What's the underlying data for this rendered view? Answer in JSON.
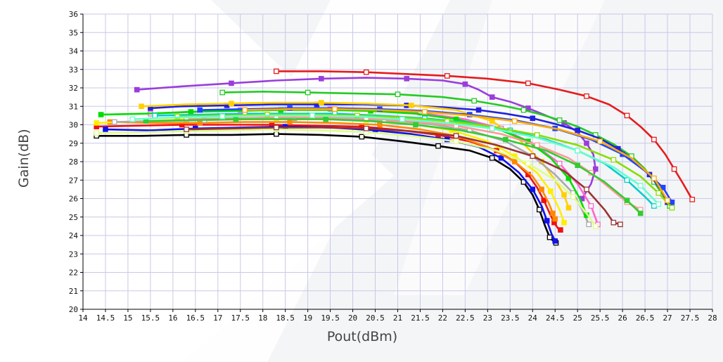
{
  "chart_data": {
    "type": "line",
    "title": "",
    "xlabel": "Pout(dBm)",
    "ylabel": "Gain(dB)",
    "xlim": [
      14,
      28
    ],
    "ylim": [
      20,
      36
    ],
    "xticks": [
      "14",
      "14.5",
      "15",
      "15.5",
      "16",
      "16.5",
      "17",
      "17.5",
      "18",
      "18.5",
      "19",
      "19.5",
      "20",
      "20.5",
      "21",
      "21.5",
      "22",
      "22.5",
      "23",
      "23.5",
      "24",
      "24.5",
      "25",
      "25.5",
      "26",
      "26.5",
      "27",
      "27.5",
      "28"
    ],
    "yticks": [
      "20",
      "21",
      "22",
      "23",
      "24",
      "25",
      "26",
      "27",
      "28",
      "29",
      "30",
      "31",
      "32",
      "33",
      "34",
      "35",
      "36"
    ],
    "grid": true,
    "legend": "none",
    "series": [
      {
        "color": "#e51c1c",
        "marker": "open",
        "x": [
          18.3,
          19.3,
          20.3,
          21.2,
          22.1,
          23,
          23.9,
          24.6,
          25.2,
          25.7,
          26.1,
          26.4,
          26.7,
          26.95,
          27.15,
          27.35,
          27.55
        ],
        "y": [
          32.9,
          32.9,
          32.85,
          32.75,
          32.65,
          32.5,
          32.25,
          31.9,
          31.55,
          31.1,
          30.5,
          29.9,
          29.2,
          28.4,
          27.6,
          26.8,
          25.95
        ]
      },
      {
        "color": "#9b3ddb",
        "marker": "filled",
        "x": [
          15.2,
          16.3,
          17.3,
          18.3,
          19.3,
          20.3,
          21.2,
          22,
          22.5,
          22.8,
          23.1,
          23.5,
          23.9,
          24.3,
          24.7,
          25,
          25.2,
          25.35,
          25.4,
          25.3,
          25.1
        ],
        "y": [
          31.9,
          32.1,
          32.25,
          32.4,
          32.5,
          32.55,
          32.5,
          32.4,
          32.2,
          31.9,
          31.5,
          31.25,
          30.9,
          30.5,
          30.1,
          29.6,
          29,
          28.4,
          27.6,
          26.8,
          26
        ]
      },
      {
        "color": "#22cc22",
        "marker": "open",
        "x": [
          17.1,
          18,
          19,
          20,
          21,
          22,
          22.7,
          23.3,
          23.8,
          24.2,
          24.6,
          25,
          25.4,
          25.8,
          26.2,
          26.5,
          26.7,
          26.9,
          27.05
        ],
        "y": [
          31.75,
          31.8,
          31.75,
          31.7,
          31.65,
          31.5,
          31.3,
          31.05,
          30.8,
          30.55,
          30.25,
          29.9,
          29.45,
          28.95,
          28.3,
          27.6,
          26.9,
          26.2,
          25.6
        ]
      },
      {
        "color": "#2222dd",
        "marker": "filled",
        "x": [
          15.5,
          16.2,
          17.2,
          18.2,
          19.2,
          20.2,
          21.2,
          22,
          22.8,
          23.4,
          24,
          24.5,
          25,
          25.5,
          25.9,
          26.3,
          26.6,
          26.85,
          27
        ],
        "y": [
          30.9,
          31,
          31.05,
          31.1,
          31.1,
          31.1,
          31.05,
          30.95,
          30.8,
          30.6,
          30.35,
          30.05,
          29.7,
          29.25,
          28.7,
          28,
          27.3,
          26.5,
          25.8
        ]
      },
      {
        "color": "#000000",
        "marker": "open",
        "x": [
          14.3,
          15.3,
          16.3,
          17.3,
          18.3,
          19.3,
          20.2,
          21.1,
          21.9,
          22.6,
          23.1,
          23.5,
          23.8,
          24,
          24.15,
          24.28,
          24.38,
          24.46,
          24.52
        ],
        "y": [
          29.4,
          29.4,
          29.45,
          29.45,
          29.5,
          29.45,
          29.35,
          29.1,
          28.85,
          28.6,
          28.2,
          27.6,
          26.9,
          26.2,
          25.4,
          24.5,
          23.9,
          23.7,
          23.6
        ]
      },
      {
        "color": "#ee1111",
        "marker": "filled",
        "x": [
          14.3,
          15.2,
          16.2,
          17.2,
          18.2,
          19.2,
          20.2,
          21.1,
          21.9,
          22.6,
          23.2,
          23.6,
          23.9,
          24.1,
          24.25,
          24.38,
          24.48,
          24.56,
          24.62
        ],
        "y": [
          29.9,
          29.95,
          30,
          30,
          30,
          29.95,
          29.9,
          29.7,
          29.45,
          29.1,
          28.6,
          28,
          27.3,
          26.6,
          25.9,
          25.2,
          24.7,
          24.4,
          24.3
        ]
      },
      {
        "color": "#1111ee",
        "marker": "filled",
        "x": [
          14.5,
          15.5,
          16.5,
          17.5,
          18.5,
          19.5,
          20.5,
          21.3,
          22.1,
          22.8,
          23.3,
          23.7,
          24,
          24.2,
          24.32,
          24.42,
          24.5
        ],
        "y": [
          29.75,
          29.7,
          29.8,
          29.85,
          29.9,
          29.85,
          29.7,
          29.5,
          29.2,
          28.8,
          28.2,
          27.4,
          26.5,
          25.6,
          24.8,
          24.1,
          23.7
        ]
      },
      {
        "color": "#ff8800",
        "marker": "filled",
        "x": [
          14.6,
          15.6,
          16.6,
          17.6,
          18.6,
          19.6,
          20.6,
          21.5,
          22.3,
          23,
          23.6,
          24,
          24.2,
          24.35,
          24.45,
          24.5
        ],
        "y": [
          30.15,
          30.1,
          30.1,
          30.15,
          30.15,
          30.1,
          30,
          29.75,
          29.4,
          28.8,
          28,
          27.2,
          26.5,
          25.8,
          25.2,
          24.9
        ]
      },
      {
        "color": "#ffee00",
        "marker": "filled",
        "x": [
          14.3,
          15.3,
          16.3,
          17.3,
          18.3,
          19.3,
          20.3,
          21.3,
          22.2,
          23,
          23.6,
          24.1,
          24.4,
          24.6,
          24.7
        ],
        "y": [
          30.1,
          30.2,
          30.3,
          30.35,
          30.35,
          30.3,
          30.25,
          30.05,
          29.7,
          29.1,
          28.3,
          27.4,
          26.4,
          25.4,
          24.7
        ]
      },
      {
        "color": "#ffd000",
        "marker": "filled",
        "x": [
          15.3,
          16.3,
          17.3,
          18.3,
          19.3,
          20.3,
          21.3,
          22.3,
          23.1,
          23.7,
          24.2,
          24.5,
          24.7,
          24.8
        ],
        "y": [
          31,
          31.1,
          31.15,
          31.2,
          31.2,
          31.15,
          31.05,
          30.8,
          30.2,
          29.2,
          28,
          27,
          26.2,
          25.5
        ]
      },
      {
        "color": "#aaaaaa",
        "marker": "open",
        "x": [
          14.7,
          15.7,
          16.7,
          17.7,
          18.7,
          19.7,
          20.7,
          21.7,
          22.6,
          23.4,
          24,
          24.5,
          24.9,
          25.1,
          25.25
        ],
        "y": [
          30.15,
          30.2,
          30.25,
          30.3,
          30.35,
          30.35,
          30.25,
          30.05,
          29.7,
          29.1,
          28.3,
          27.3,
          26.3,
          25.4,
          24.6
        ]
      },
      {
        "color": "#ff66cc",
        "marker": "open",
        "x": [
          15.5,
          16.5,
          17.5,
          18.5,
          19.5,
          20.5,
          21.5,
          22.5,
          23.3,
          24,
          24.6,
          25,
          25.3,
          25.45
        ],
        "y": [
          30.6,
          30.7,
          30.8,
          30.85,
          30.85,
          30.8,
          30.65,
          30.3,
          29.8,
          29,
          27.9,
          26.8,
          25.6,
          24.6
        ]
      },
      {
        "color": "#00dd00",
        "marker": "filled",
        "x": [
          14.4,
          15.4,
          16.4,
          17.4,
          18.4,
          19.4,
          20.4,
          21.4,
          22.3,
          23.2,
          23.9,
          24.4,
          24.8,
          25.05,
          25.2
        ],
        "y": [
          30.55,
          30.6,
          30.7,
          30.75,
          30.8,
          30.8,
          30.75,
          30.6,
          30.3,
          29.8,
          29.1,
          28.2,
          27.1,
          26,
          25.1
        ]
      },
      {
        "color": "#ddff88",
        "marker": "open",
        "x": [
          14.3,
          15.3,
          16.3,
          17.3,
          18.3,
          19.3,
          20.3,
          21.3,
          22.3,
          23.2,
          23.9,
          24.5,
          24.9,
          25.2,
          25.4
        ],
        "y": [
          29.55,
          29.6,
          29.65,
          29.7,
          29.75,
          29.7,
          29.6,
          29.4,
          29.1,
          28.6,
          27.9,
          27,
          26.1,
          25.2,
          24.5
        ]
      },
      {
        "color": "#993333",
        "marker": "open",
        "x": [
          16.3,
          17.3,
          18.3,
          19.3,
          20.3,
          21.3,
          22.3,
          23.2,
          24,
          24.7,
          25.2,
          25.6,
          25.8,
          25.95
        ],
        "y": [
          29.75,
          29.8,
          29.85,
          29.85,
          29.8,
          29.65,
          29.4,
          28.9,
          28.3,
          27.5,
          26.5,
          25.4,
          24.7,
          24.6
        ]
      },
      {
        "color": "#ff9999",
        "marker": "open",
        "x": [
          16.3,
          17.3,
          18.3,
          19.3,
          20.3,
          21.3,
          22.3,
          23.3,
          24.1,
          24.8,
          25.3,
          25.7,
          26.1,
          26.4
        ],
        "y": [
          30.3,
          30.35,
          30.4,
          30.4,
          30.35,
          30.2,
          29.95,
          29.5,
          28.9,
          28.2,
          27.4,
          26.6,
          25.8,
          25.4
        ]
      },
      {
        "color": "#00cccc",
        "marker": "open",
        "x": [
          15.6,
          16.6,
          17.6,
          18.6,
          19.6,
          20.6,
          21.6,
          22.6,
          23.5,
          24.3,
          25,
          25.6,
          26.1,
          26.5,
          26.7
        ],
        "y": [
          30.5,
          30.55,
          30.6,
          30.6,
          30.6,
          30.5,
          30.35,
          30.1,
          29.7,
          29.2,
          28.6,
          27.9,
          27,
          26.1,
          25.6
        ]
      },
      {
        "color": "#33cc33",
        "marker": "filled",
        "x": [
          15.4,
          16.4,
          17.4,
          18.4,
          19.4,
          20.4,
          21.4,
          22.4,
          23.4,
          24.3,
          25,
          25.6,
          26.1,
          26.4
        ],
        "y": [
          30.2,
          30.25,
          30.3,
          30.3,
          30.3,
          30.2,
          30,
          29.7,
          29.2,
          28.6,
          27.8,
          26.9,
          25.9,
          25.2
        ]
      },
      {
        "color": "#2244ff",
        "marker": "filled",
        "x": [
          16.6,
          17.6,
          18.6,
          19.6,
          20.6,
          21.6,
          22.6,
          23.6,
          24.5,
          25.3,
          26,
          26.5,
          26.9,
          27.1
        ],
        "y": [
          30.8,
          30.85,
          30.9,
          30.9,
          30.85,
          30.75,
          30.55,
          30.25,
          29.8,
          29.2,
          28.4,
          27.5,
          26.6,
          25.8
        ]
      },
      {
        "color": "#88dd00",
        "marker": "open",
        "x": [
          16.1,
          17.1,
          18.1,
          19.1,
          20.1,
          21.1,
          22.1,
          23.1,
          24.1,
          25,
          25.8,
          26.4,
          26.8,
          27.1
        ],
        "y": [
          30.45,
          30.5,
          30.55,
          30.55,
          30.5,
          30.4,
          30.2,
          29.9,
          29.45,
          28.9,
          28.1,
          27.2,
          26.3,
          25.5
        ]
      },
      {
        "color": "#ffaa00",
        "marker": "open",
        "x": [
          17.6,
          18.6,
          19.6,
          20.6,
          21.6,
          22.6,
          23.6,
          24.6,
          25.5,
          26.2,
          26.7,
          27
        ],
        "y": [
          30.8,
          30.85,
          30.85,
          30.8,
          30.7,
          30.5,
          30.2,
          29.75,
          29.1,
          28.2,
          27.1,
          25.9
        ]
      },
      {
        "color": "#66ffcc",
        "marker": "open",
        "x": [
          15.1,
          16.1,
          17.1,
          18.1,
          19.1,
          20.1,
          21.1,
          22.1,
          23.1,
          24.1,
          25,
          25.8,
          26.4,
          26.8
        ],
        "y": [
          30.3,
          30.4,
          30.45,
          30.5,
          30.5,
          30.45,
          30.3,
          30.1,
          29.8,
          29.3,
          28.6,
          27.7,
          26.7,
          25.7
        ]
      }
    ]
  }
}
